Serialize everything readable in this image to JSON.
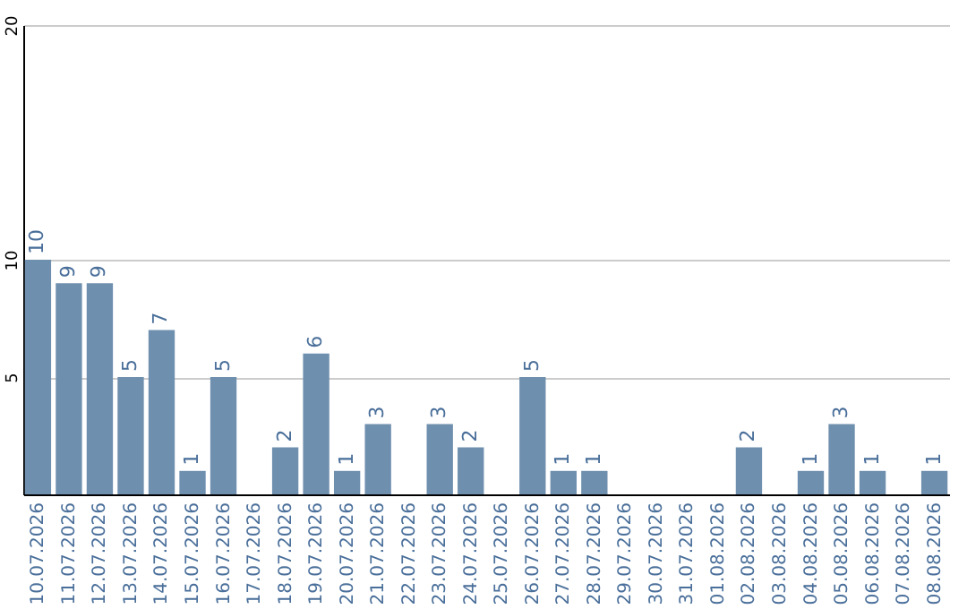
{
  "chart_data": {
    "type": "bar",
    "categories": [
      "10.07.2026",
      "11.07.2026",
      "12.07.2026",
      "13.07.2026",
      "14.07.2026",
      "15.07.2026",
      "16.07.2026",
      "17.07.2026",
      "18.07.2026",
      "19.07.2026",
      "20.07.2026",
      "21.07.2026",
      "22.07.2026",
      "23.07.2026",
      "24.07.2026",
      "25.07.2026",
      "26.07.2026",
      "27.07.2026",
      "28.07.2026",
      "29.07.2026",
      "30.07.2026",
      "31.07.2026",
      "01.08.2026",
      "02.08.2026",
      "03.08.2026",
      "04.08.2026",
      "05.08.2026",
      "06.08.2026",
      "07.08.2026",
      "08.08.2026"
    ],
    "values": [
      10,
      9,
      9,
      5,
      7,
      1,
      5,
      null,
      2,
      6,
      1,
      3,
      null,
      3,
      2,
      null,
      5,
      1,
      1,
      null,
      null,
      null,
      null,
      2,
      null,
      1,
      3,
      1,
      null,
      1
    ],
    "color": "#6f8fae",
    "ylim": [
      0,
      20
    ],
    "yticks": [
      5,
      10,
      20
    ],
    "grid": "y",
    "data_labels": true
  }
}
